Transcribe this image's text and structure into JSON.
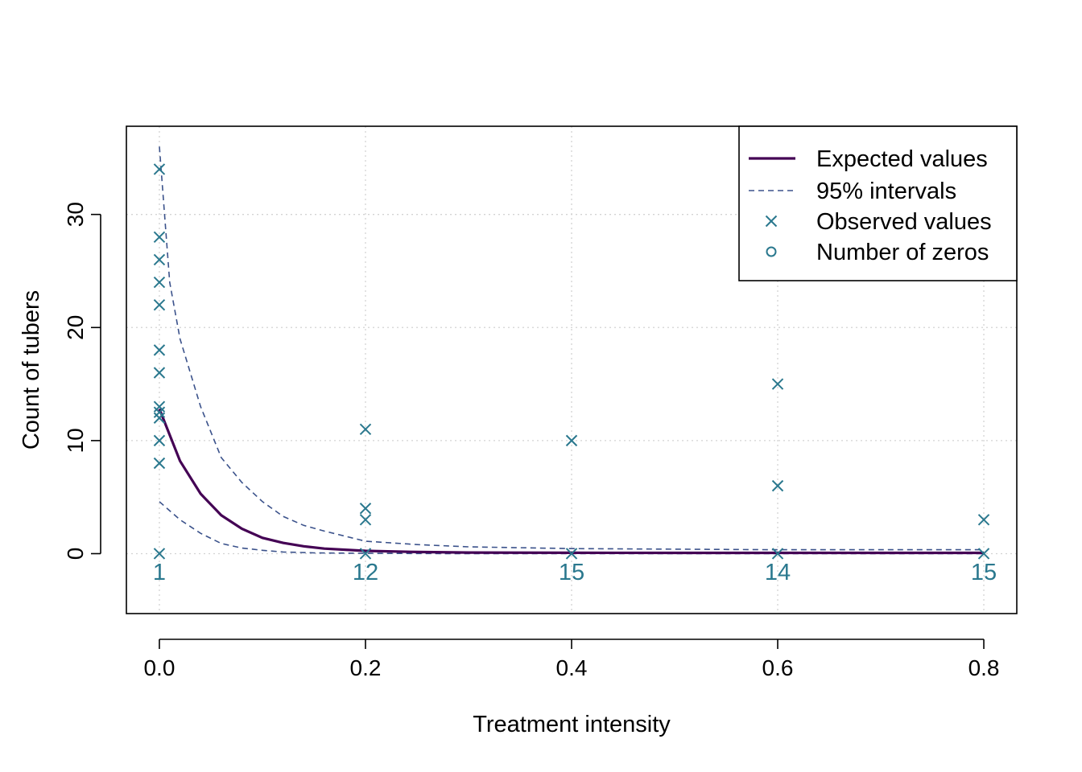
{
  "chart_data": {
    "type": "scatter",
    "title": "",
    "xlabel": "Treatment intensity",
    "ylabel": "Count of tubers",
    "xlim": [
      -0.032,
      0.832
    ],
    "ylim": [
      -5.3,
      37.8
    ],
    "x_ticks": [
      0.0,
      0.2,
      0.4,
      0.6,
      0.8
    ],
    "x_tick_labels": [
      "0.0",
      "0.2",
      "0.4",
      "0.6",
      "0.8"
    ],
    "y_ticks": [
      0,
      10,
      20,
      30
    ],
    "y_tick_labels": [
      "0",
      "10",
      "20",
      "30"
    ],
    "grid": true,
    "legend": {
      "position": "top-right",
      "entries": [
        {
          "label": "Expected values",
          "kind": "line"
        },
        {
          "label": "95% intervals",
          "kind": "dashed"
        },
        {
          "label": "Observed values",
          "kind": "cross"
        },
        {
          "label": "Number of zeros",
          "kind": "circle"
        }
      ]
    },
    "colors": {
      "expected": "#440154",
      "interval": "#3b528b",
      "observed": "#21908c",
      "zeros": "#2a788e",
      "grid": "#d3d3d3"
    },
    "series": [
      {
        "name": "Expected values",
        "style": "line",
        "x": [
          0.0,
          0.02,
          0.04,
          0.06,
          0.08,
          0.1,
          0.12,
          0.14,
          0.16,
          0.2,
          0.25,
          0.3,
          0.4,
          0.5,
          0.6,
          0.7,
          0.8
        ],
        "y": [
          12.8,
          8.2,
          5.3,
          3.4,
          2.2,
          1.4,
          0.95,
          0.65,
          0.45,
          0.25,
          0.15,
          0.1,
          0.08,
          0.07,
          0.07,
          0.07,
          0.07
        ]
      },
      {
        "name": "95% intervals",
        "style": "dashed",
        "x": [
          0.0,
          0.01,
          0.02,
          0.04,
          0.06,
          0.08,
          0.1,
          0.12,
          0.14,
          0.16,
          0.2,
          0.25,
          0.3,
          0.4,
          0.5,
          0.6,
          0.7,
          0.8
        ],
        "y": [
          36.0,
          24.0,
          19.0,
          13.0,
          8.5,
          6.3,
          4.6,
          3.3,
          2.5,
          2.0,
          1.1,
          0.8,
          0.6,
          0.45,
          0.4,
          0.35,
          0.35,
          0.35
        ]
      },
      {
        "name": "95% intervals lower",
        "style": "dashed",
        "x": [
          0.0,
          0.01,
          0.02,
          0.04,
          0.06,
          0.08,
          0.1,
          0.12,
          0.15,
          0.2,
          0.3,
          0.4,
          0.6,
          0.8
        ],
        "y": [
          4.6,
          3.8,
          3.0,
          1.8,
          0.9,
          0.5,
          0.3,
          0.15,
          0.07,
          0.03,
          0.0,
          0.0,
          0.0,
          0.0
        ]
      },
      {
        "name": "Observed values",
        "style": "points",
        "x": [
          0.0,
          0.0,
          0.0,
          0.0,
          0.0,
          0.0,
          0.0,
          0.0,
          0.0,
          0.0,
          0.0,
          0.0,
          0.0,
          0.2,
          0.2,
          0.2,
          0.2,
          0.4,
          0.4,
          0.6,
          0.6,
          0.6,
          0.8,
          0.8
        ],
        "y": [
          34,
          28,
          26,
          24,
          22,
          18,
          16,
          13,
          12,
          10,
          8,
          0,
          12.5,
          11,
          4,
          3,
          0,
          10,
          0,
          15,
          6,
          0,
          3,
          0
        ]
      }
    ],
    "zero_counts": [
      {
        "x": 0.0,
        "label": "1"
      },
      {
        "x": 0.2,
        "label": "12"
      },
      {
        "x": 0.4,
        "label": "15"
      },
      {
        "x": 0.6,
        "label": "14"
      },
      {
        "x": 0.8,
        "label": "15"
      }
    ]
  }
}
